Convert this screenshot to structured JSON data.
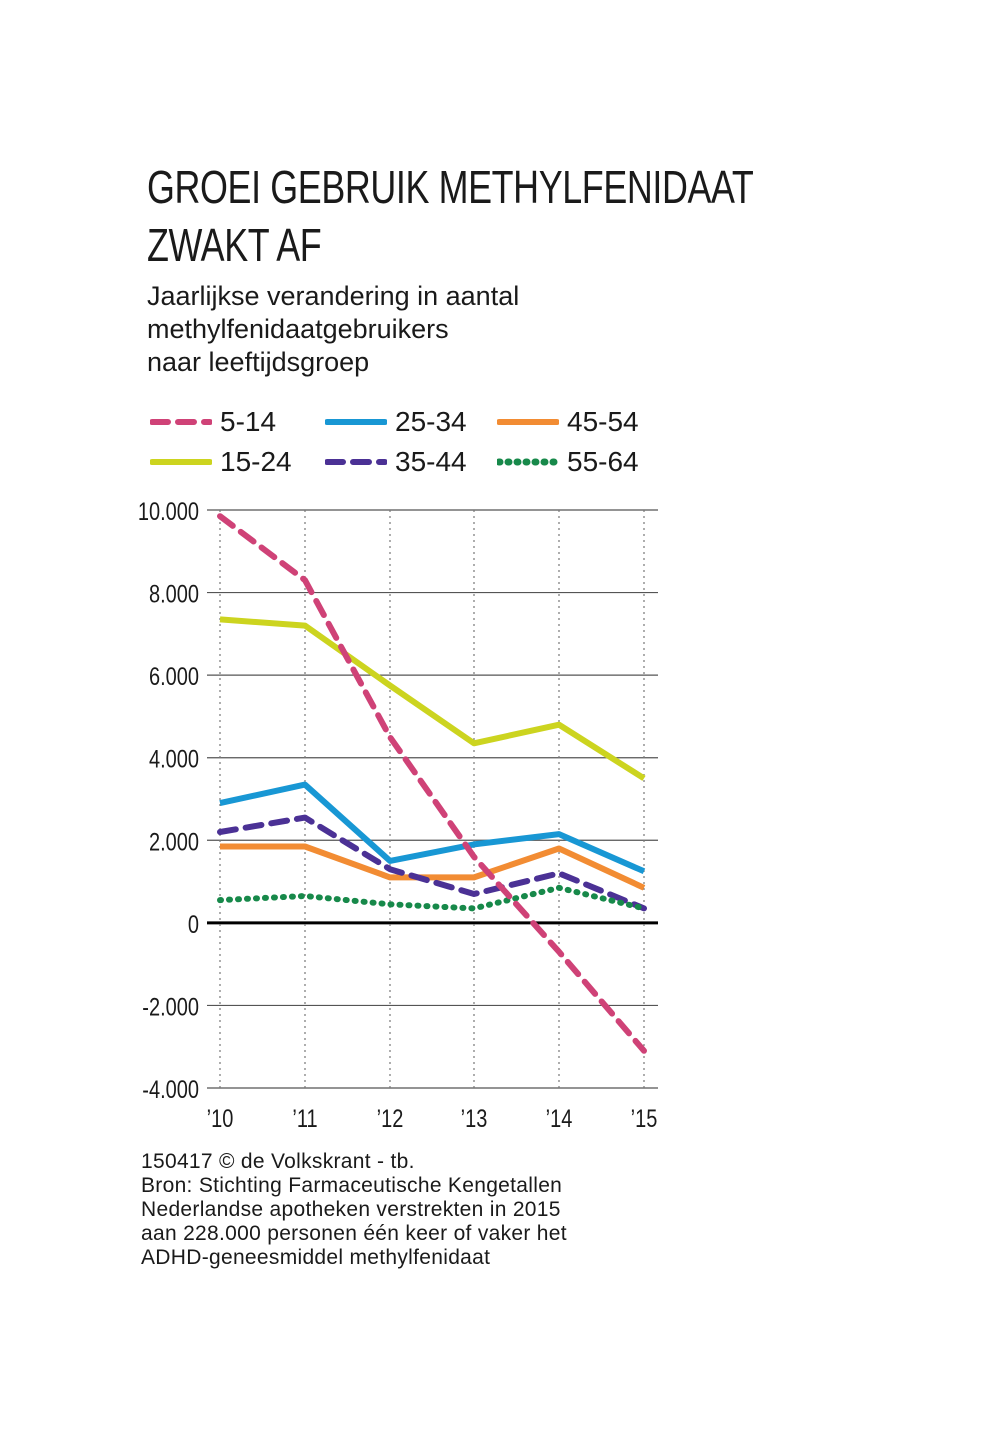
{
  "chart_data": {
    "type": "line",
    "title": "GROEI GEBRUIK METHYLFENIDAAT ZWAKT AF",
    "title_lines": [
      "GROEI GEBRUIK METHYLFENIDAAT",
      "ZWAKT AF"
    ],
    "subtitle_lines": [
      "Jaarlijkse verandering in aantal",
      "methylfenidaatgebruikers",
      "naar leeftijdsgroep"
    ],
    "categories": [
      "’10",
      "’11",
      "’12",
      "’13",
      "’14",
      "’15"
    ],
    "y_ticks": [
      "10.000",
      "8.000",
      "6.000",
      "4.000",
      "2.000",
      "0",
      "-2.000",
      "-4.000"
    ],
    "ylim": [
      -4000,
      10000
    ],
    "grid": true,
    "legend_position": "top",
    "series": [
      {
        "name": "5-14",
        "color": "#cf4277",
        "style": "dashed",
        "values": [
          9850,
          8300,
          4500,
          1600,
          -700,
          -3100
        ]
      },
      {
        "name": "15-24",
        "color": "#ccd41f",
        "style": "solid",
        "values": [
          7350,
          7200,
          5750,
          4350,
          4800,
          3500
        ]
      },
      {
        "name": "25-34",
        "color": "#1897d4",
        "style": "solid",
        "values": [
          2900,
          3350,
          1500,
          1900,
          2150,
          1250
        ]
      },
      {
        "name": "35-44",
        "color": "#4b3195",
        "style": "dashed",
        "values": [
          2200,
          2550,
          1300,
          700,
          1200,
          350
        ]
      },
      {
        "name": "45-54",
        "color": "#f28c33",
        "style": "solid",
        "values": [
          1850,
          1850,
          1100,
          1100,
          1800,
          850
        ]
      },
      {
        "name": "55-64",
        "color": "#17894a",
        "style": "dotted",
        "values": [
          550,
          650,
          450,
          350,
          850,
          350
        ]
      }
    ]
  },
  "footer": {
    "lines": [
      "150417 © de Volkskrant - tb.",
      "Bron: Stichting Farmaceutische Kengetallen",
      "Nederlandse apotheken verstrekten in 2015",
      "aan 228.000 personen één keer of vaker het",
      "ADHD-geneesmiddel methylfenidaat"
    ]
  }
}
